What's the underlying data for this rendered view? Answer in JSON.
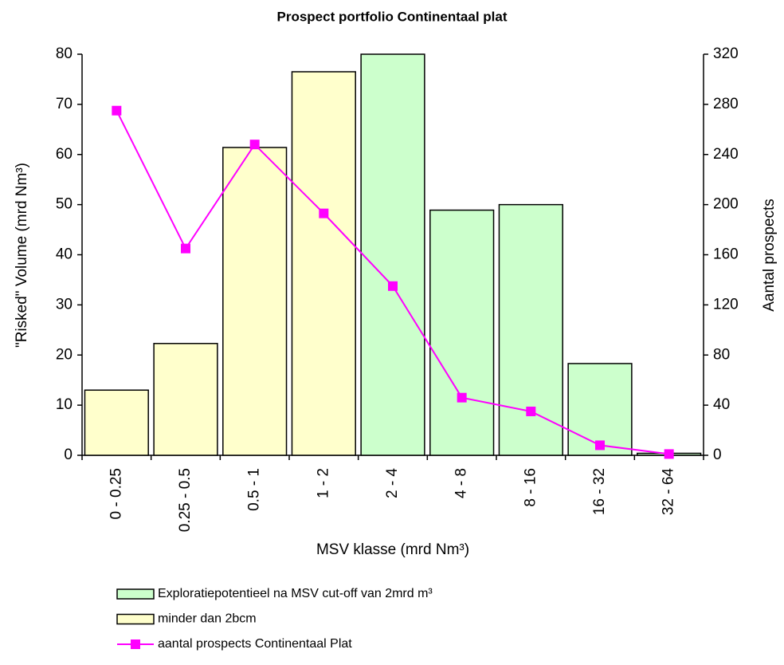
{
  "chart_data": {
    "type": "bar",
    "title": "Prospect portfolio Continentaal plat",
    "x_label": "MSV klasse (mrd Nm³)",
    "y_label": "\"Risked\" Volume  (mrd Nm³)",
    "y2_label": "Aantal prospects",
    "categories": [
      "0 - 0.25",
      "0.25  - 0.5",
      "0.5  - 1",
      "1 - 2",
      "2 - 4",
      "4 - 8",
      "8 - 16",
      "16  - 32",
      "32  - 64"
    ],
    "series": [
      {
        "name": "Exploratiepotentieel na MSV cut-off van 2mrd m³",
        "color": "#ccffcc",
        "type": "bar",
        "values": [
          null,
          null,
          null,
          null,
          80,
          48.9,
          50,
          18.3,
          0.4
        ]
      },
      {
        "name": "minder dan 2bcm",
        "color": "#ffffcc",
        "type": "bar",
        "values": [
          13,
          22.3,
          61.4,
          76.5,
          null,
          null,
          null,
          null,
          null
        ]
      },
      {
        "name": "aantal prospects Continentaal Plat",
        "color": "#ff00ff",
        "type": "line",
        "axis": "y2",
        "values": [
          275,
          165,
          248,
          193,
          135,
          46,
          35,
          8,
          1
        ]
      }
    ],
    "ylim": [
      0,
      80
    ],
    "yticks": [
      0,
      10,
      20,
      30,
      40,
      50,
      60,
      70,
      80
    ],
    "y2lim": [
      0,
      320
    ],
    "y2ticks": [
      0,
      40,
      80,
      120,
      160,
      200,
      240,
      280,
      320
    ]
  }
}
